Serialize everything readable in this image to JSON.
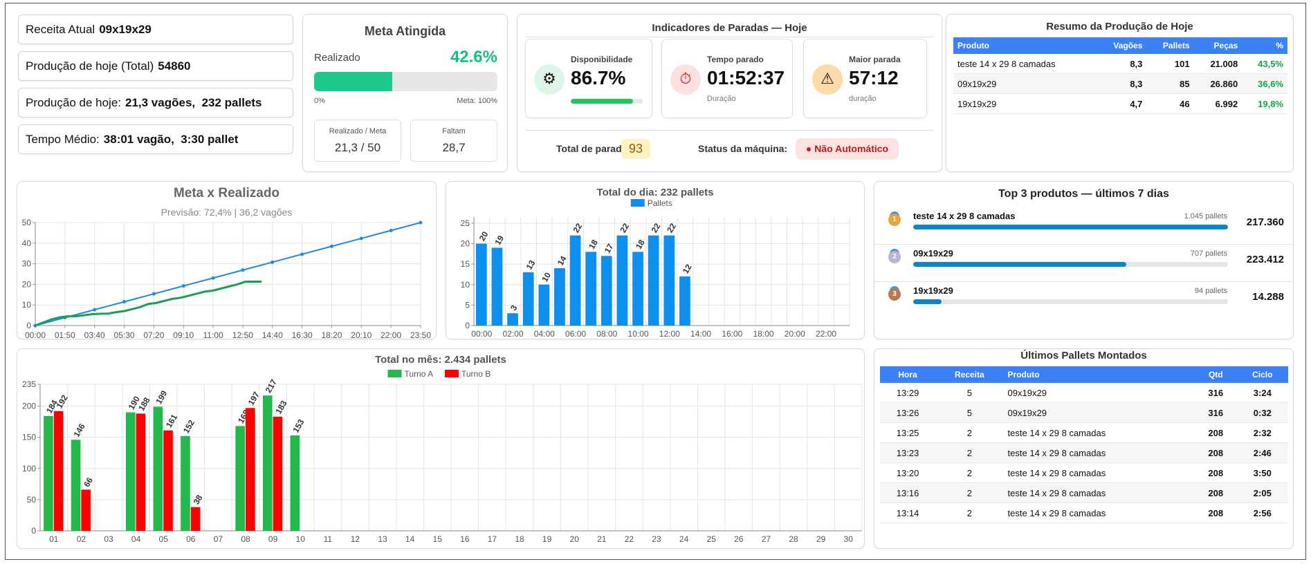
{
  "info": [
    {
      "label": "Receita Atual",
      "value": "09x19x29"
    },
    {
      "label": "Produção de hoje (Total)",
      "value": "54860"
    },
    {
      "label": "Produção de hoje:",
      "value": "21,3 vagões,  232 pallets"
    },
    {
      "label": "Tempo Médio:",
      "value": "38:01 vagão,  3:30 pallet"
    }
  ],
  "meta": {
    "title": "Meta Atingida",
    "label": "Realizado",
    "percent": {
      "value": 42.6,
      "label": "42.6%"
    },
    "bar_min": "0%",
    "bar_max": "Meta: 100%",
    "boxes": [
      {
        "label": "Realizado / Meta",
        "value": "21,3 / 50"
      },
      {
        "label": "Faltam",
        "value": "28,7"
      }
    ]
  },
  "paradas": {
    "title": "Indicadores de Paradas — Hoje",
    "availability": {
      "label": "Disponibilidade",
      "value": {
        "value": 86.7,
        "label": "86.7%"
      }
    },
    "stopped": {
      "label": "Tempo parado",
      "value": "01:52:37",
      "sub": "Duração"
    },
    "longest": {
      "label": "Maior parada",
      "value": "57:12",
      "sub": "duração"
    },
    "total_label": "Total de paradas:",
    "total": 93,
    "status_label": "Status da máquina:",
    "status": "Não Automático"
  },
  "resumo": {
    "title": "Resumo da Produção de Hoje",
    "columns": [
      "Produto",
      "Vagões",
      "Pallets",
      "Peças",
      "%"
    ],
    "rows": [
      [
        "teste 14 x 29 8 camadas",
        "8,3",
        "101",
        "21.008",
        "43,5%"
      ],
      [
        "09x19x29",
        "8,3",
        "85",
        "26.860",
        "36,6%"
      ],
      [
        "19x19x29",
        "4,7",
        "46",
        "6.992",
        "19,8%"
      ]
    ]
  },
  "top3": {
    "title": "Top 3 produtos — últimos 7 dias",
    "items": [
      {
        "rank": "1",
        "name": "teste 14 x 29 8 camadas",
        "pallets": {
          "value": 1045,
          "label": "1.045 pallets"
        },
        "total": "217.360"
      },
      {
        "rank": "2",
        "name": "09x19x29",
        "pallets": {
          "value": 707,
          "label": "707 pallets"
        },
        "total": "223.412"
      },
      {
        "rank": "3",
        "name": "19x19x29",
        "pallets": {
          "value": 94,
          "label": "94 pallets"
        },
        "total": "14.288"
      }
    ]
  },
  "ultimos": {
    "title": "Últimos Pallets Montados",
    "columns": [
      "Hora",
      "Receita",
      "Produto",
      "Qtd",
      "Ciclo"
    ],
    "rows": [
      [
        "13:29",
        "5",
        "09x19x29",
        "316",
        "3:24"
      ],
      [
        "13:26",
        "5",
        "09x19x29",
        "316",
        "0:32"
      ],
      [
        "13:25",
        "2",
        "teste 14 x 29 8 camadas",
        "208",
        "2:32"
      ],
      [
        "13:23",
        "2",
        "teste 14 x 29 8 camadas",
        "208",
        "2:46"
      ],
      [
        "13:20",
        "2",
        "teste 14 x 29 8 camadas",
        "208",
        "3:50"
      ],
      [
        "13:16",
        "2",
        "teste 14 x 29 8 camadas",
        "208",
        "2:05"
      ],
      [
        "13:14",
        "2",
        "teste 14 x 29 8 camadas",
        "208",
        "2:56"
      ]
    ]
  },
  "chart_data": [
    {
      "type": "line",
      "title": "Meta x Realizado",
      "subtitle": "Previsão: 72,4% | 36,2 vagões",
      "xlim": [
        0,
        1430
      ],
      "xticks": [
        {
          "value": 0,
          "label": "00:00"
        },
        {
          "value": 110,
          "label": "01:50"
        },
        {
          "value": 220,
          "label": "03:40"
        },
        {
          "value": 330,
          "label": "05:30"
        },
        {
          "value": 440,
          "label": "07:20"
        },
        {
          "value": 550,
          "label": "09:10"
        },
        {
          "value": 660,
          "label": "11:00"
        },
        {
          "value": 770,
          "label": "12:50"
        },
        {
          "value": 880,
          "label": "14:40"
        },
        {
          "value": 990,
          "label": "16:30"
        },
        {
          "value": 1100,
          "label": "18:20"
        },
        {
          "value": 1210,
          "label": "20:10"
        },
        {
          "value": 1320,
          "label": "22:00"
        },
        {
          "value": 1430,
          "label": "23:50"
        }
      ],
      "ylim": [
        0,
        50
      ],
      "yticks": [
        0,
        10,
        20,
        30,
        40,
        50
      ],
      "grid": true,
      "series": [
        {
          "color": "#1a8be0",
          "markers": true,
          "x": [
            0,
            110,
            220,
            330,
            440,
            550,
            660,
            770,
            880,
            990,
            1100,
            1210,
            1320,
            1430
          ],
          "values": [
            0,
            3.85,
            7.69,
            11.54,
            15.38,
            19.23,
            23.08,
            26.92,
            30.77,
            34.62,
            38.46,
            42.31,
            46.15,
            50
          ]
        },
        {
          "color": "#1a9e55",
          "markers": false,
          "x": [
            0,
            30,
            60,
            90,
            120,
            150,
            180,
            210,
            240,
            270,
            300,
            330,
            360,
            390,
            420,
            450,
            480,
            510,
            540,
            570,
            600,
            630,
            660,
            690,
            720,
            750,
            780,
            840
          ],
          "values": [
            0,
            1.5,
            3,
            4,
            4.5,
            4.5,
            5,
            5.5,
            5.7,
            5.8,
            6.5,
            7,
            8,
            9,
            10.5,
            11,
            12,
            13,
            13.5,
            14.5,
            15.5,
            16.5,
            17,
            18,
            19,
            20,
            21.3,
            21.3
          ]
        }
      ]
    },
    {
      "type": "bar",
      "title": "Total do dia: 232 pallets",
      "legend": "top",
      "categories": [
        "00:00",
        null,
        "02:00",
        null,
        "04:00",
        null,
        "06:00",
        null,
        "08:00",
        null,
        "10:00",
        null,
        "12:00",
        null,
        "14:00",
        null,
        "16:00",
        null,
        "18:00",
        null,
        "20:00",
        null,
        "22:00",
        null
      ],
      "ylim": [
        0,
        26.5
      ],
      "yticks": [
        0,
        5,
        10,
        15,
        20,
        25
      ],
      "grid": true,
      "series": [
        {
          "name": "Pallets",
          "color": "#0d8ff0",
          "values": [
            20,
            19,
            3,
            13,
            10,
            14,
            22,
            18,
            17,
            22,
            18,
            22,
            22,
            12,
            null,
            null,
            null,
            null,
            null,
            null,
            null,
            null,
            null,
            null
          ]
        }
      ]
    },
    {
      "type": "bar",
      "title": "Total no mês: 2.434 pallets",
      "legend": "top",
      "categories": [
        "01",
        "02",
        "03",
        "04",
        "05",
        "06",
        "07",
        "08",
        "09",
        "10",
        "11",
        "12",
        "13",
        "14",
        "15",
        "16",
        "17",
        "18",
        "19",
        "20",
        "21",
        "22",
        "23",
        "24",
        "25",
        "26",
        "27",
        "28",
        "29",
        "30"
      ],
      "ylim": [
        0,
        235
      ],
      "yticks": [
        0,
        50,
        100,
        150,
        200,
        235
      ],
      "grid": true,
      "series": [
        {
          "name": "Turno A",
          "color": "#22b84c",
          "values": [
            184,
            146,
            null,
            190,
            199,
            152,
            null,
            168,
            217,
            153,
            null,
            null,
            null,
            null,
            null,
            null,
            null,
            null,
            null,
            null,
            null,
            null,
            null,
            null,
            null,
            null,
            null,
            null,
            null,
            null
          ]
        },
        {
          "name": "Turno B",
          "color": "#ff0000",
          "values": [
            192,
            66,
            null,
            188,
            161,
            38,
            null,
            197,
            183,
            null,
            null,
            null,
            null,
            null,
            null,
            null,
            null,
            null,
            null,
            null,
            null,
            null,
            null,
            null,
            null,
            null,
            null,
            null,
            null,
            null
          ]
        }
      ]
    }
  ]
}
